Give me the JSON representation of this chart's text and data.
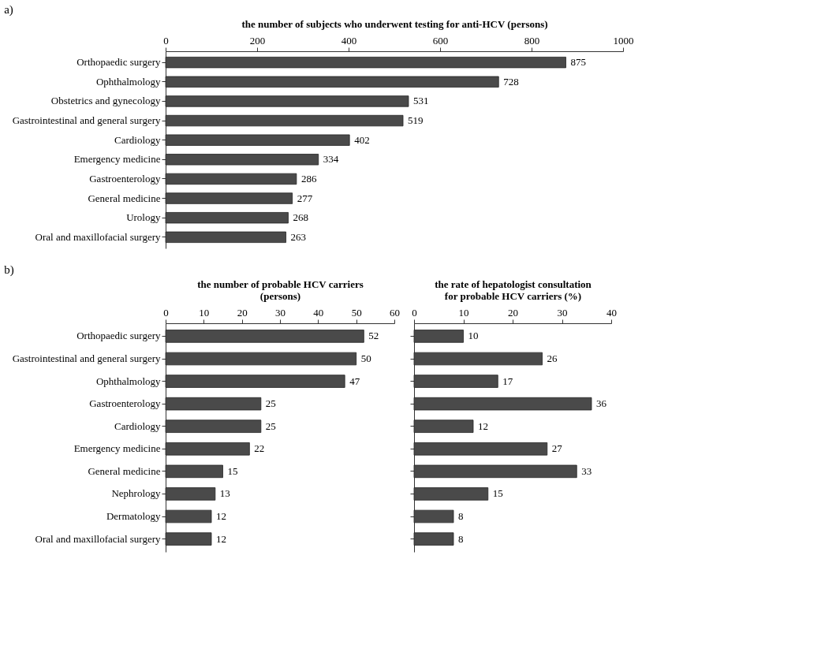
{
  "chart_data": [
    {
      "type": "bar",
      "orientation": "horizontal",
      "annotations": [
        "a)"
      ],
      "xlabel": "the number of subjects who underwent testing for anti-HCV (persons)",
      "categories": [
        "Orthopaedic surgery",
        "Ophthalmology",
        "Obstetrics and gynecology",
        "Gastrointestinal and general surgery",
        "Cardiology",
        "Emergency medicine",
        "Gastroenterology",
        "General medicine",
        "Urology",
        "Oral and maxillofacial surgery"
      ],
      "values": [
        875,
        728,
        531,
        519,
        402,
        334,
        286,
        277,
        268,
        263
      ],
      "color": "#4a4a4a",
      "xlim": [
        0,
        1000
      ],
      "xticks": [
        0,
        200,
        400,
        600,
        800,
        1000
      ],
      "data_labels": true,
      "grid": false
    },
    {
      "type": "bar",
      "orientation": "horizontal",
      "annotations": [
        "b)"
      ],
      "xlabel": "the number of probable HCV carriers\n(persons)",
      "categories": [
        "Orthopaedic surgery",
        "Gastrointestinal and general surgery",
        "Ophthalmology",
        "Gastroenterology",
        "Cardiology",
        "Emergency medicine",
        "General medicine",
        "Nephrology",
        "Dermatology",
        "Oral and maxillofacial surgery"
      ],
      "values": [
        52,
        50,
        47,
        25,
        25,
        22,
        15,
        13,
        12,
        12
      ],
      "color": "#4a4a4a",
      "xlim": [
        0,
        60
      ],
      "xticks": [
        0,
        10,
        20,
        30,
        40,
        50,
        60
      ],
      "data_labels": true,
      "grid": false
    },
    {
      "type": "bar",
      "orientation": "horizontal",
      "xlabel": "the rate of hepatologist consultation\nfor probable HCV carriers (%)",
      "categories": [
        null,
        null,
        null,
        null,
        null,
        null,
        null,
        null,
        null,
        null
      ],
      "values": [
        10,
        26,
        17,
        36,
        12,
        27,
        33,
        15,
        8,
        8
      ],
      "color": "#4a4a4a",
      "xlim": [
        0,
        40
      ],
      "xticks": [
        0,
        10,
        20,
        30,
        40
      ],
      "data_labels": true,
      "grid": false,
      "tick_labels": "x"
    }
  ]
}
